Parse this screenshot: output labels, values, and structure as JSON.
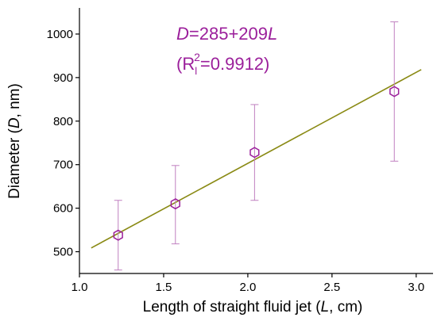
{
  "chart_data": {
    "type": "scatter",
    "xlabel": {
      "prefix": "Length of straight fluid jet (",
      "var": "L",
      "suffix": ", cm)"
    },
    "ylabel": {
      "prefix": "Diameter (",
      "var": "D",
      "suffix": ", nm)"
    },
    "xlim": [
      1.0,
      3.1
    ],
    "ylim": [
      450,
      1060
    ],
    "xticks": [
      "1.0",
      "1.5",
      "2.0",
      "2.5",
      "3.0"
    ],
    "yticks": [
      "500",
      "600",
      "700",
      "800",
      "900",
      "1000"
    ],
    "grid": false,
    "points": [
      {
        "x": 1.23,
        "y": 538,
        "ymin": 458,
        "ymax": 618
      },
      {
        "x": 1.57,
        "y": 610,
        "ymin": 518,
        "ymax": 698
      },
      {
        "x": 2.04,
        "y": 728,
        "ymin": 618,
        "ymax": 838
      },
      {
        "x": 2.87,
        "y": 868,
        "ymin": 708,
        "ymax": 1028
      }
    ],
    "fit": {
      "intercept": 285,
      "slope": 209,
      "x_start": 1.07,
      "x_end": 3.03
    },
    "annotation": {
      "equation": {
        "var": "D",
        "mid": "=285+209",
        "var2": "L"
      },
      "r2": {
        "open": "(R",
        "sub": "l",
        "sup": "2",
        "close": "=0.9912)"
      }
    },
    "colors": {
      "marker": "#9b1f9b",
      "errorbar": "#c080c0",
      "fit_line": "#8a8a14",
      "axis": "#000000",
      "annotation": "#9b1f9b"
    }
  }
}
